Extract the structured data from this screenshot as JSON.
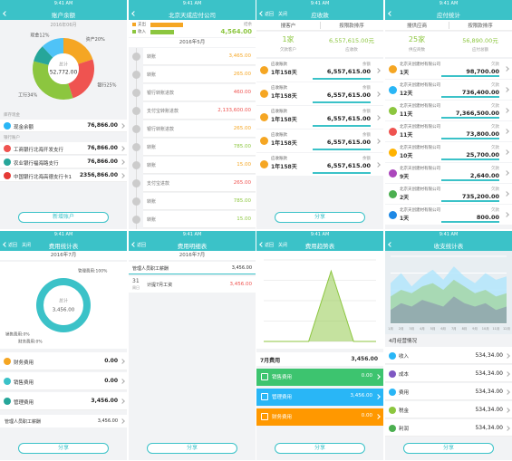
{
  "screens": [
    {
      "type": "balance",
      "status": "9:41 AM",
      "title": "账户余额",
      "date": "2016年06月",
      "total_label": "总计",
      "total": "52,772.00",
      "slices": [
        {
          "label": "资产20%",
          "value": 20,
          "color": "#f5a623"
        },
        {
          "label": "银行25%",
          "value": 25,
          "color": "#ef5350"
        },
        {
          "label": "工行34%",
          "value": 34,
          "color": "#8cc63f"
        },
        {
          "label": null,
          "value": 9,
          "color": "#26a69a"
        },
        {
          "label": "现金12%",
          "value": 12,
          "color": "#4fc3f7"
        }
      ],
      "sections": [
        {
          "heading": "库存现金",
          "rows": [
            {
              "name": "现金余额",
              "amount": "76,866.00",
              "color": "#29b6f6"
            }
          ]
        },
        {
          "heading": "银行账户",
          "rows": [
            {
              "name": "工商银行北海开发支行",
              "amount": "76,866.00",
              "color": "#ef5350"
            },
            {
              "name": "农业银行福海路支行",
              "amount": "76,866.00",
              "color": "#26a69a"
            },
            {
              "name": "中国银行北海高德支行卡1",
              "amount": "2356,866.00",
              "color": "#e53935"
            }
          ]
        }
      ],
      "button": "新增账户"
    },
    {
      "type": "ledger",
      "status": "9:41 AM",
      "title": "北京天成应付公司",
      "legend": [
        {
          "name": "支出",
          "color": "#f5a623"
        },
        {
          "name": "收入",
          "color": "#8cc63f"
        }
      ],
      "balance_label": "结余",
      "balance": "4,564.00",
      "date": "2016年5月",
      "rows": [
        {
          "name": "转账",
          "amount": "3,465.00",
          "color": "#f5a623"
        },
        {
          "name": "转账",
          "amount": "265.00",
          "color": "#f5a623"
        },
        {
          "name": "银行转账进款",
          "amount": "460.00",
          "color": "#ef5350"
        },
        {
          "name": "支付宝转账进款",
          "amount": "2,133,600.00",
          "color": "#ef5350"
        },
        {
          "name": "银行转账进款",
          "amount": "265.00",
          "color": "#f5a623"
        },
        {
          "name": "转账",
          "amount": "785.00",
          "color": "#8cc63f"
        },
        {
          "name": "转账",
          "amount": "15.00",
          "color": "#f5a623"
        },
        {
          "name": "支付宝进款",
          "amount": "265.00",
          "color": "#ef5350"
        },
        {
          "name": "转账",
          "amount": "785.00",
          "color": "#8cc63f"
        },
        {
          "name": "转账",
          "amount": "15.00",
          "color": "#8cc63f"
        }
      ]
    },
    {
      "type": "receivable",
      "status": "9:41 AM",
      "back": "返回",
      "close": "关闭",
      "title": "应收款",
      "tabs": [
        "搜客户",
        "按限款排序"
      ],
      "count": "1家",
      "count_label": "欠款客户",
      "total": "6,557,615.00元",
      "total_label": "应收款",
      "rows": [
        {
          "name": "应收账款",
          "days": "1年158天",
          "label": "余额",
          "amount": "6,557,615.00",
          "color": "#f5a623"
        },
        {
          "name": "应收账款",
          "days": "1年158天",
          "label": "余额",
          "amount": "6,557,615.00",
          "color": "#f5a623"
        },
        {
          "name": "应收账款",
          "days": "1年158天",
          "label": "余额",
          "amount": "6,557,615.00",
          "color": "#f5a623"
        },
        {
          "name": "应收账款",
          "days": "1年158天",
          "label": "余额",
          "amount": "6,557,615.00",
          "color": "#f5a623"
        },
        {
          "name": "应收账款",
          "days": "1年158天",
          "label": "余额",
          "amount": "6,557,615.00",
          "color": "#f5a623"
        }
      ],
      "button": "分享"
    },
    {
      "type": "receivable",
      "status": "9:41 AM",
      "title": "应付统计",
      "tabs": [
        "搜供应商",
        "按限款排序"
      ],
      "count": "25家",
      "count_label": "供应商数",
      "total": "56,890.00元",
      "total_label": "应付总额",
      "rows": [
        {
          "name": "北京天创建材有限公司",
          "days": "1天",
          "label": "欠款",
          "amount": "98,700.00",
          "color": "#f5a623"
        },
        {
          "name": "北京天创建材有限公司",
          "days": "12天",
          "label": "欠款",
          "amount": "736,400.00",
          "color": "#29b6f6"
        },
        {
          "name": "北京天创建材有限公司",
          "days": "11天",
          "label": "欠款",
          "amount": "7,366,500.00",
          "color": "#8cc63f"
        },
        {
          "name": "北京天创建材有限公司",
          "days": "11天",
          "label": "欠款",
          "amount": "73,800.00",
          "color": "#ef5350"
        },
        {
          "name": "北京天创建材有限公司",
          "days": "10天",
          "label": "欠款",
          "amount": "25,700.00",
          "color": "#ffb300"
        },
        {
          "name": "北京天创建材有限公司",
          "days": "9天",
          "label": "欠款",
          "amount": "2,640.00",
          "color": "#ab47bc"
        },
        {
          "name": "北京天创建材有限公司",
          "days": "2天",
          "label": "欠款",
          "amount": "735,200.00",
          "color": "#4caf50"
        },
        {
          "name": "北京天创建材有限公司",
          "days": "1天",
          "label": "欠款",
          "amount": "800.00",
          "color": "#1e88e5"
        }
      ]
    },
    {
      "type": "expense",
      "status": "9:41 AM",
      "back": "返回",
      "close": "关闭",
      "title": "费用统计表",
      "date": "2016年7月",
      "slices": [
        {
          "label": "管理费用:100%",
          "value": 100,
          "color": "#3bc2c8"
        },
        {
          "label": "销售费用:0%",
          "value": 0,
          "color": "#8cc63f"
        },
        {
          "label": "财务费用:0%",
          "value": 0,
          "color": "#f5a623"
        }
      ],
      "total_label": "总计",
      "total": "3,456.00",
      "rows": [
        {
          "name": "财务费用",
          "amount": "0.00",
          "color": "#f5a623"
        },
        {
          "name": "销售费用",
          "amount": "0.00",
          "color": "#3bc2c8"
        },
        {
          "name": "管理费用",
          "amount": "3,456.00",
          "color": "#26a69a"
        }
      ],
      "detail": {
        "name": "管理人员职工薪酬",
        "amount": "3,456.00"
      },
      "button": "分享"
    },
    {
      "type": "expense_detail",
      "status": "9:41 AM",
      "back": "返回",
      "title": "费用明细表",
      "date": "2016年7月",
      "card": {
        "name": "管理人员职工薪酬",
        "amount": "3,456.00"
      },
      "items": [
        {
          "day": "31",
          "weekday": "周日",
          "name": "计提7月工资",
          "amount": "3,456.00"
        }
      ],
      "button": "分享"
    },
    {
      "type": "trend",
      "status": "9:41 AM",
      "back": "返回",
      "close": "关闭",
      "title": "费用趋势表",
      "chart": {
        "values": [
          0,
          0,
          0,
          3456,
          0,
          0
        ],
        "ylim": [
          0,
          4000
        ],
        "color": "#8cc63f"
      },
      "month": "7月费用",
      "total": "3,456.00",
      "rows": [
        {
          "name": "销售费用",
          "amount": "0.00",
          "color": "#3dc46f"
        },
        {
          "name": "管理费用",
          "amount": "3,456.00",
          "color": "#29b6f6"
        },
        {
          "name": "财务费用",
          "amount": "0.00",
          "color": "#ff9800"
        }
      ],
      "button": "分享"
    },
    {
      "type": "income",
      "status": "9:41 AM",
      "title": "收支统计表",
      "chart": {
        "categories": [
          "1月",
          "2月",
          "3月",
          "4月",
          "5月",
          "6月",
          "7月",
          "8月",
          "9月",
          "10月",
          "11月",
          "12月"
        ],
        "ylim": [
          0,
          100
        ],
        "series": [
          {
            "color": "#b3e5fc",
            "values": [
              60,
              75,
              55,
              70,
              80,
              65,
              85,
              70,
              60,
              75,
              65,
              70
            ]
          },
          {
            "color": "#a5d6a7",
            "values": [
              40,
              50,
              45,
              55,
              60,
              50,
              65,
              55,
              45,
              50,
              40,
              45
            ]
          },
          {
            "color": "#90a4ae",
            "values": [
              20,
              30,
              25,
              35,
              30,
              25,
              40,
              30,
              25,
              30,
              20,
              25
            ]
          }
        ]
      },
      "month": "4月经营情况",
      "rows": [
        {
          "name": "收入",
          "amount": "534,34.00",
          "color": "#29b6f6"
        },
        {
          "name": "成本",
          "amount": "534,34.00",
          "color": "#7e57c2"
        },
        {
          "name": "费用",
          "amount": "534,34.00",
          "color": "#29b6f6"
        },
        {
          "name": "税金",
          "amount": "534,34.00",
          "color": "#8cc63f"
        },
        {
          "name": "利润",
          "amount": "534,34.00",
          "color": "#4caf50"
        }
      ],
      "button": "分享"
    }
  ]
}
